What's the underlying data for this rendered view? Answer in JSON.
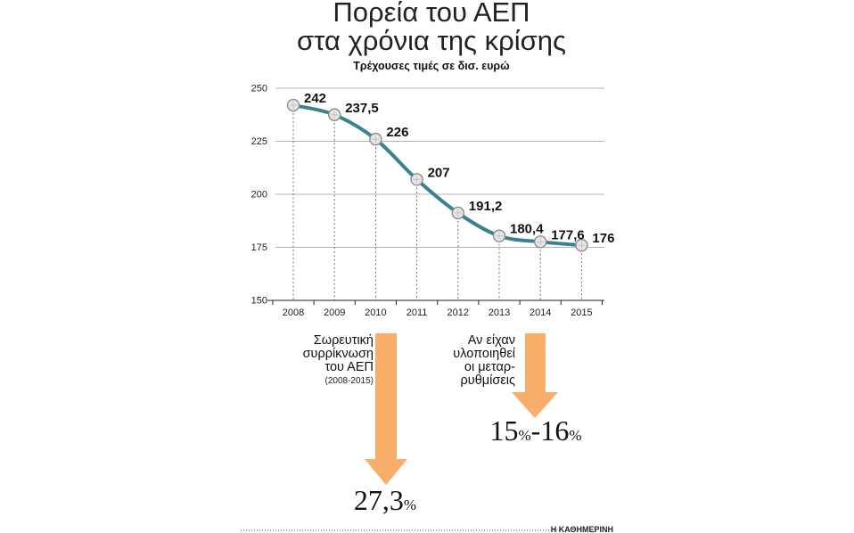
{
  "chart_data": {
    "type": "line",
    "title_line1": "Πορεία του ΑΕΠ",
    "title_line2": "στα χρόνια της κρίσης",
    "subtitle": "Τρέχουσες τιμές σε δισ. ευρώ",
    "x": [
      "2008",
      "2009",
      "2010",
      "2011",
      "2012",
      "2013",
      "2014",
      "2015"
    ],
    "values": [
      242,
      237.5,
      226,
      207,
      191.2,
      180.4,
      177.6,
      176
    ],
    "value_labels": [
      "242",
      "237,5",
      "226",
      "207",
      "191,2",
      "180,4",
      "177,6",
      "176"
    ],
    "yticks": [
      "150",
      "175",
      "200",
      "225",
      "250"
    ],
    "ylim": [
      150,
      250
    ],
    "grid": true,
    "line_color": "#3a8293"
  },
  "annotations": {
    "left": {
      "lines": [
        "Σωρευτική",
        "συρρίκνωση",
        "του ΑΕΠ"
      ],
      "period": "(2008-2015)",
      "value": "27,3",
      "unit": "%"
    },
    "right": {
      "lines": [
        "Αν είχαν",
        "υλοποιηθεί",
        "οι μεταρ-",
        "ρυθμίσεις"
      ],
      "value_a": "15",
      "unit_a": "%",
      "dash": "-",
      "value_b": "16",
      "unit_b": "%"
    },
    "arrow_color": "#f9ad6b"
  },
  "credit": "Η ΚΑΘΗΜΕΡΙΝΗ"
}
